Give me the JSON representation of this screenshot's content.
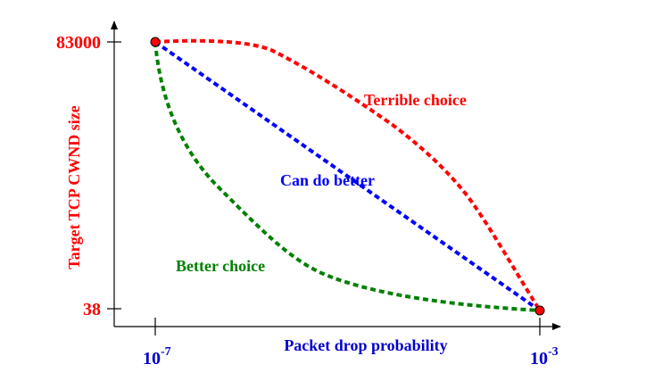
{
  "chart_data": {
    "type": "line",
    "xlabel": "Packet drop probability",
    "ylabel": "Target TCP CWND size",
    "x_ticks": [
      {
        "base": "10",
        "exp": "-7"
      },
      {
        "base": "10",
        "exp": "-3"
      }
    ],
    "y_ticks": [
      "83000",
      "38"
    ],
    "endpoints": [
      {
        "x": "1e-7",
        "y": 83000
      },
      {
        "x": "1e-3",
        "y": 38
      }
    ],
    "series": [
      {
        "name": "Terrible choice",
        "color": "#ff0000",
        "shape": "concave (bulges above the straight line)"
      },
      {
        "name": "Can do better",
        "color": "#0000ff",
        "shape": "straight line"
      },
      {
        "name": "Better choice",
        "color": "#008000",
        "shape": "convex (sags below the straight line)"
      }
    ],
    "colors": {
      "axis_label_x": "#0000cc",
      "axis_label_y": "#ff0000",
      "tick_x": "#0000cc",
      "tick_y": "#ff0000",
      "endpoint_fill": "#ff0000"
    }
  }
}
